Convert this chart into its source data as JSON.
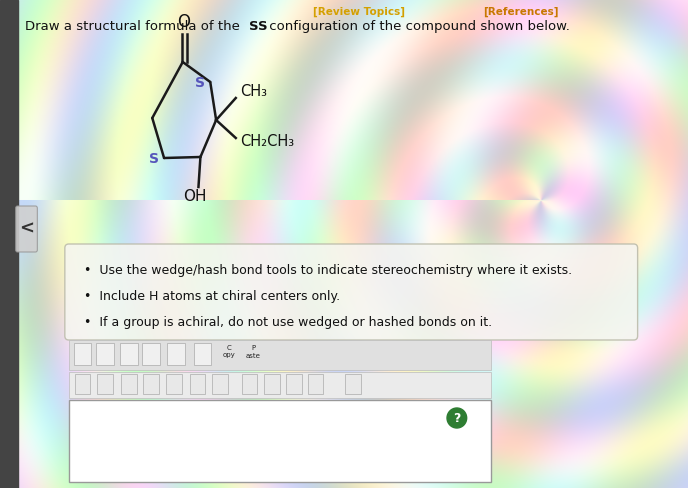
{
  "header_left": "[Review Topics]",
  "header_right": "[References]",
  "header_color_left": "#d4a000",
  "header_color_right": "#c87800",
  "question_plain": "Draw a structural formula of the ",
  "question_bold": "SS",
  "question_end": " configuration of the compound shown below.",
  "bullet_points": [
    "Use the wedge/hash bond tools to indicate stereochemistry where it exists.",
    "Include H atoms at chiral centers only.",
    "If a group is achiral, do not use wedged or hashed bonds on it."
  ],
  "ring_color": "#1a1a1a",
  "s_color": "#5555bb",
  "bond_lw": 1.8,
  "o_label": "O",
  "oh_label": "OH",
  "ch3_label": "CH₃",
  "ch2ch3_label": "CH₂CH₃",
  "toolbar_bg": "#e0e0e0",
  "toolbar_border": "#bbbbbb",
  "draw_bg": "#ffffff",
  "draw_border": "#999999",
  "qmark_color": "#2e7d32",
  "box_bg": "#f5f5f0",
  "box_border": "#bbbbaa",
  "left_arrow_bg": "#d0d0d0",
  "left_strip_bg": "#555555"
}
